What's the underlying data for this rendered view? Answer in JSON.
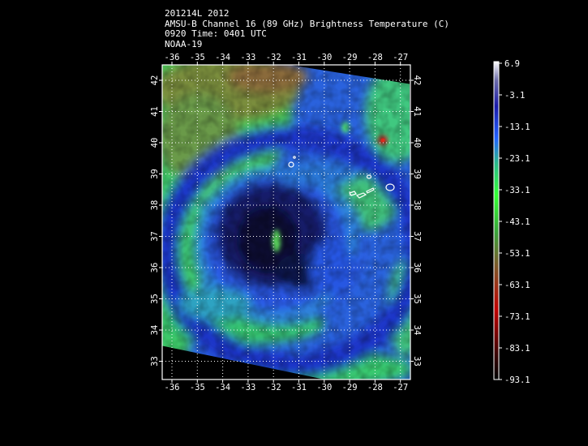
{
  "header": {
    "line1": "201214L 2012",
    "line2": "AMSU-B Channel 16 (89 GHz) Brightness Temperature (C)",
    "line3": "0920 Time: 0401 UTC",
    "line4": "NOAA-19"
  },
  "map": {
    "lon_labels": [
      "-36",
      "-35",
      "-34",
      "-33",
      "-32",
      "-31",
      "-30",
      "-29",
      "-28",
      "-27"
    ],
    "lat_labels": [
      "42",
      "41",
      "40",
      "39",
      "38",
      "37",
      "36",
      "35",
      "34",
      "33"
    ],
    "grid_style": "dotted white",
    "colors": {
      "cold_core": "#0b0f30",
      "deep_blue": "#1a2fb8",
      "blue": "#2c58e6",
      "cyan_blue": "#2d8fd4",
      "green": "#39d36b",
      "bright_green": "#4cff4c",
      "olive": "#6f8e3a",
      "brown": "#8a6a3a",
      "red_hot": "#c01010"
    }
  },
  "colorbar": {
    "labels": [
      "6.9",
      "-3.1",
      "-13.1",
      "-23.1",
      "-33.1",
      "-43.1",
      "-53.1",
      "-63.1",
      "-73.1",
      "-83.1",
      "-93.1"
    ],
    "range": [
      -93.1,
      6.9
    ]
  }
}
